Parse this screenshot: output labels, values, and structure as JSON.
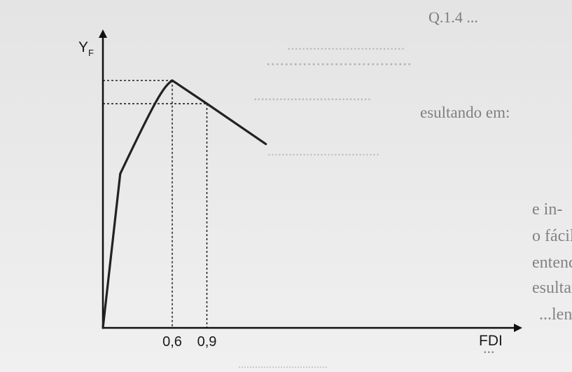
{
  "chart_data": {
    "type": "line",
    "ylabel": "Y",
    "ylabel_sub": "F",
    "xlabel": "FDI",
    "xlim": [
      0,
      1.45
    ],
    "ylim": [
      0,
      1
    ],
    "x_ticks": [
      {
        "value": 0.6,
        "label": "0,6"
      },
      {
        "value": 0.9,
        "label": "0,9"
      }
    ],
    "series": [
      {
        "points": [
          {
            "x": 0.0,
            "y": 0.0
          },
          {
            "x": 0.15,
            "y": 0.55
          },
          {
            "x": 0.45,
            "y": 0.81
          },
          {
            "x": 0.52,
            "y": 0.86
          },
          {
            "x": 0.6,
            "y": 0.883
          },
          {
            "x": 0.9,
            "y": 0.8
          },
          {
            "x": 1.41,
            "y": 0.656
          }
        ]
      }
    ],
    "reference_lines": [
      {
        "x": 0.6,
        "y": 0.883
      },
      {
        "x": 0.9,
        "y": 0.8
      }
    ],
    "grid": false,
    "legend": "none",
    "colors": {
      "curve": "#222222",
      "axis": "#111111",
      "guides": "#111111",
      "page": "#ebebeb"
    }
  },
  "background_text": [
    "Q.1.4 ...",
    "................................",
    "................................",
    "................................",
    "esultando em:",
    "................................",
    "e in-",
    "o fácil e",
    "entender",
    "esultante",
    "...lento do",
    "...",
    "................................"
  ]
}
